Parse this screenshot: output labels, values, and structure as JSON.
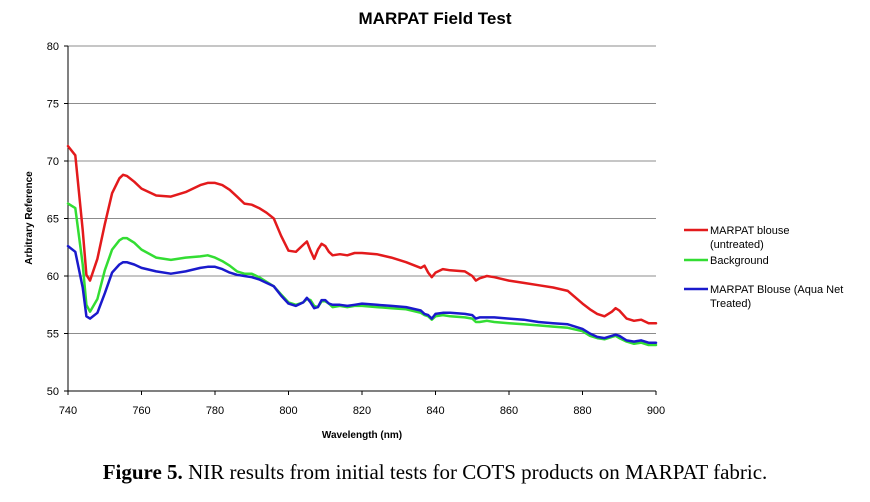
{
  "caption": {
    "label": "Figure 5.",
    "text": "NIR results from initial tests for COTS products on MARPAT fabric."
  },
  "chart_data": {
    "type": "line",
    "title": "MARPAT Field Test",
    "xlabel": "Wavelength (nm)",
    "ylabel": "Arbitrary Reference",
    "xlim": [
      740,
      900
    ],
    "ylim": [
      50,
      80
    ],
    "xticks": [
      740,
      760,
      780,
      800,
      820,
      840,
      860,
      880,
      900
    ],
    "yticks": [
      50,
      55,
      60,
      65,
      70,
      75,
      80
    ],
    "grid": "horizontal",
    "legend_position": "right",
    "x": [
      740,
      742,
      744,
      745,
      746,
      748,
      750,
      752,
      754,
      755,
      756,
      758,
      760,
      764,
      768,
      772,
      776,
      778,
      780,
      782,
      784,
      786,
      788,
      790,
      792,
      794,
      796,
      798,
      800,
      802,
      804,
      805,
      806,
      807,
      808,
      809,
      810,
      811,
      812,
      814,
      816,
      818,
      820,
      824,
      828,
      832,
      836,
      837,
      838,
      839,
      840,
      842,
      844,
      848,
      850,
      851,
      852,
      854,
      856,
      860,
      864,
      868,
      872,
      876,
      880,
      882,
      884,
      886,
      888,
      889,
      890,
      892,
      894,
      896,
      898,
      900
    ],
    "series": [
      {
        "name": "MARPAT blouse (untreated)",
        "color": "#e31a1c",
        "values": [
          71.3,
          70.5,
          64,
          60.1,
          59.6,
          61.5,
          64.5,
          67.2,
          68.5,
          68.8,
          68.7,
          68.2,
          67.6,
          67.0,
          66.9,
          67.3,
          67.9,
          68.1,
          68.1,
          67.9,
          67.5,
          66.9,
          66.3,
          66.2,
          65.9,
          65.5,
          65.0,
          63.5,
          62.2,
          62.1,
          62.7,
          63.0,
          62.2,
          61.5,
          62.3,
          62.8,
          62.6,
          62.1,
          61.8,
          61.9,
          61.8,
          62.0,
          62.0,
          61.9,
          61.6,
          61.2,
          60.7,
          60.9,
          60.3,
          59.9,
          60.3,
          60.6,
          60.5,
          60.4,
          60.0,
          59.6,
          59.8,
          60.0,
          59.9,
          59.6,
          59.4,
          59.2,
          59.0,
          58.7,
          57.6,
          57.1,
          56.7,
          56.5,
          56.9,
          57.2,
          57.0,
          56.3,
          56.1,
          56.2,
          55.9,
          55.9
        ]
      },
      {
        "name": "Background",
        "color": "#33dd33",
        "values": [
          66.3,
          65.9,
          61,
          57.5,
          56.9,
          58,
          60.5,
          62.3,
          63.1,
          63.3,
          63.3,
          62.9,
          62.3,
          61.6,
          61.4,
          61.6,
          61.7,
          61.8,
          61.6,
          61.3,
          60.9,
          60.4,
          60.2,
          60.2,
          59.9,
          59.5,
          59.1,
          58.4,
          57.7,
          57.5,
          57.7,
          58.0,
          57.9,
          57.4,
          57.3,
          57.8,
          57.8,
          57.6,
          57.3,
          57.4,
          57.3,
          57.4,
          57.4,
          57.3,
          57.2,
          57.1,
          56.8,
          56.6,
          56.5,
          56.2,
          56.5,
          56.6,
          56.5,
          56.4,
          56.3,
          56.0,
          56.0,
          56.1,
          56.0,
          55.9,
          55.8,
          55.7,
          55.6,
          55.5,
          55.2,
          54.8,
          54.6,
          54.5,
          54.7,
          54.8,
          54.6,
          54.3,
          54.1,
          54.2,
          54.0,
          54.0
        ]
      },
      {
        "name": "MARPAT Blouse (Aqua Net Treated)",
        "color": "#1a1acc",
        "values": [
          62.6,
          62.1,
          59,
          56.5,
          56.3,
          56.8,
          58.5,
          60.3,
          61.0,
          61.2,
          61.2,
          61.0,
          60.7,
          60.4,
          60.2,
          60.4,
          60.7,
          60.8,
          60.8,
          60.6,
          60.3,
          60.1,
          60.0,
          59.9,
          59.7,
          59.4,
          59.1,
          58.3,
          57.6,
          57.4,
          57.7,
          58.1,
          57.7,
          57.2,
          57.3,
          57.9,
          57.9,
          57.6,
          57.5,
          57.5,
          57.4,
          57.5,
          57.6,
          57.5,
          57.4,
          57.3,
          57.0,
          56.7,
          56.6,
          56.3,
          56.7,
          56.8,
          56.8,
          56.7,
          56.6,
          56.3,
          56.4,
          56.4,
          56.4,
          56.3,
          56.2,
          56.0,
          55.9,
          55.8,
          55.4,
          55.0,
          54.7,
          54.6,
          54.8,
          54.9,
          54.8,
          54.4,
          54.3,
          54.4,
          54.2,
          54.2
        ]
      }
    ]
  },
  "legend": {
    "item1_line1": "MARPAT blouse",
    "item1_line2": "(untreated)",
    "item2_line1": "Background",
    "item3_line1": "MARPAT Blouse (Aqua Net",
    "item3_line2": "Treated)"
  }
}
